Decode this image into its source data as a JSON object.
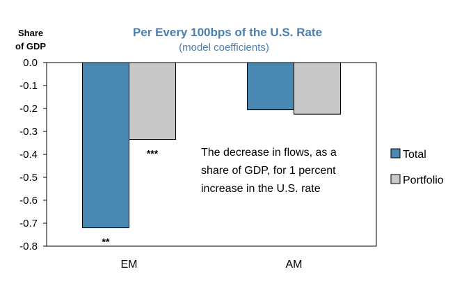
{
  "chart_data": {
    "type": "bar",
    "title": "Per Every 100bps of the U.S. Rate",
    "subtitle": "(model coefficients)",
    "ylabel": [
      "Share",
      "of GDP"
    ],
    "categories": [
      "EM",
      "AM"
    ],
    "series": [
      {
        "name": "Total",
        "color": "#4a8ab2",
        "values": [
          -0.72,
          -0.205
        ]
      },
      {
        "name": "Portfolio",
        "color": "#c8c8c8",
        "values": [
          -0.335,
          -0.225
        ]
      }
    ],
    "ylim": [
      -0.8,
      0.0
    ],
    "yticks": [
      "0.0",
      "-0.1",
      "-0.2",
      "-0.3",
      "-0.4",
      "-0.5",
      "-0.6",
      "-0.7",
      "-0.8"
    ],
    "significance": [
      {
        "category": "EM",
        "series": "Total",
        "label": "**"
      },
      {
        "category": "EM",
        "series": "Portfolio",
        "label": "***"
      }
    ],
    "annotation": [
      "The decrease in flows, as a",
      "share of GDP, for 1 percent",
      "increase in  the U.S. rate"
    ],
    "legend_position": "right",
    "grid": false
  }
}
